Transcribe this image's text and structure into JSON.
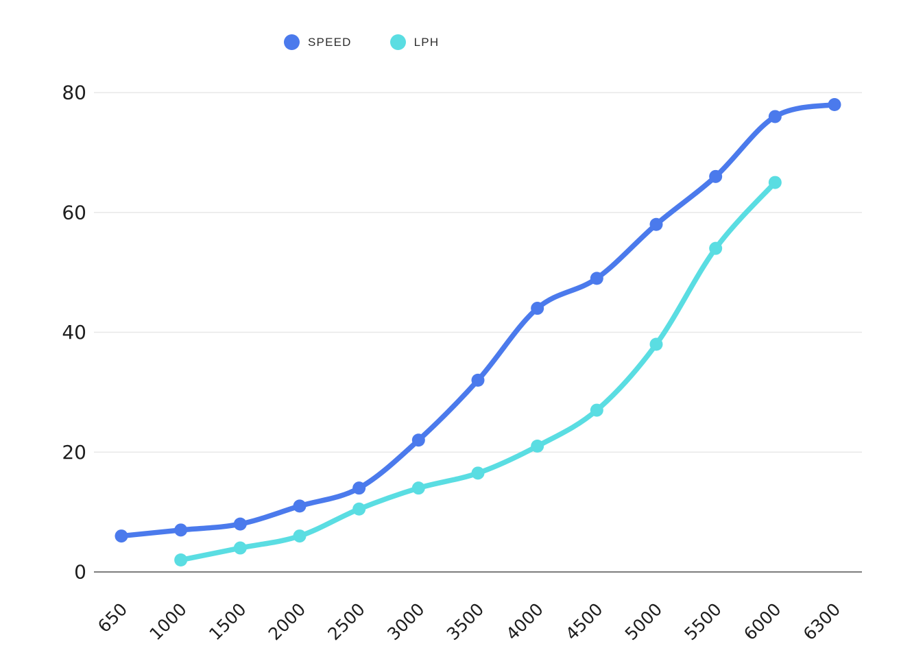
{
  "legend": {
    "items": [
      {
        "label": "SPEED",
        "color": "#4b7aec"
      },
      {
        "label": "LPH",
        "color": "#5adde2"
      }
    ]
  },
  "chart_data": {
    "type": "line",
    "title": "",
    "xlabel": "",
    "ylabel": "",
    "categories": [
      "650",
      "1000",
      "1500",
      "2000",
      "2500",
      "3000",
      "3500",
      "4000",
      "4500",
      "5000",
      "5500",
      "6000",
      "6300"
    ],
    "series": [
      {
        "name": "SPEED",
        "color": "#4b7aec",
        "values": [
          6,
          7,
          8,
          11,
          14,
          22,
          32,
          44,
          49,
          58,
          66,
          76,
          78
        ]
      },
      {
        "name": "LPH",
        "color": "#5adde2",
        "values": [
          null,
          2,
          4,
          6,
          10.5,
          14,
          16.5,
          21,
          27,
          38,
          54,
          65,
          null
        ]
      }
    ],
    "yticks": [
      0,
      20,
      40,
      60,
      80
    ],
    "ylim": [
      0,
      80
    ],
    "grid": true,
    "legend_position": "top-center"
  },
  "colors": {
    "background": "#ffffff",
    "grid_line": "#e8e8e8",
    "axis_line": "#7d7d7d",
    "tick_text": "#1e1e1e",
    "legend_text": "#2d2d2d"
  }
}
